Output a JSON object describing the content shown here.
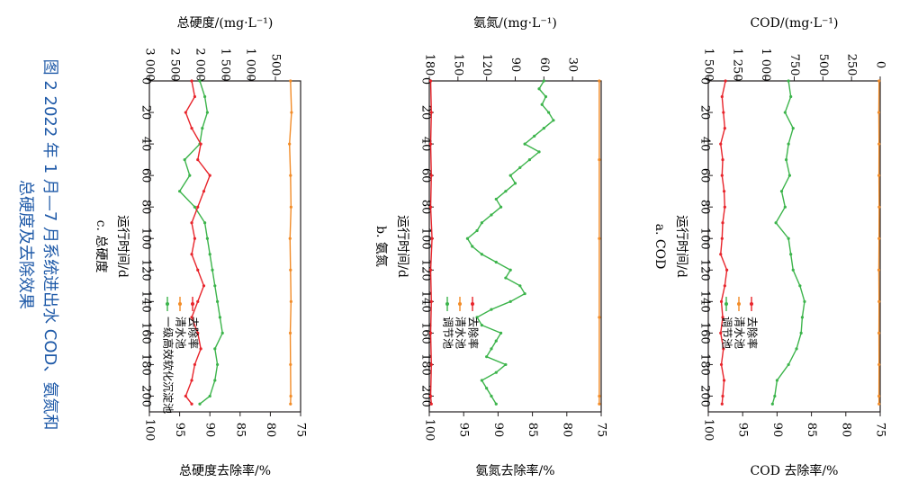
{
  "figure": {
    "caption_line1": "图 2   2022 年 1 月—7 月系统进出水 COD、氨氮和",
    "caption_line2": "总硬度及去除效果",
    "caption_color": "#1f5aa8"
  },
  "colors": {
    "green": "#3cb44b",
    "orange": "#f28c28",
    "red": "#e8242b",
    "axis": "#231f20"
  },
  "chart_data": [
    {
      "id": "cod",
      "type": "line",
      "panel_label": "a. COD",
      "xlabel": "运行时间/d",
      "ylabel_left": "COD/(mg·L⁻¹)",
      "ylabel_right": "COD 去除率/%",
      "xlim": [
        0,
        210
      ],
      "x_ticks": [
        0,
        20,
        40,
        60,
        80,
        100,
        120,
        140,
        160,
        180,
        200
      ],
      "x_tick_labels": [
        "0",
        "20",
        "40",
        "60",
        "80",
        "100",
        "120",
        "140",
        "160",
        "180",
        "200"
      ],
      "yleft_lim": [
        0,
        1500
      ],
      "yleft_ticks": [
        0,
        250,
        500,
        750,
        1000,
        1250,
        1500
      ],
      "yleft_tick_labels": [
        "0",
        "250",
        "500",
        "750",
        "1 000",
        "1 250",
        "1 500"
      ],
      "yright_lim": [
        75,
        100
      ],
      "yright_ticks": [
        75,
        80,
        85,
        90,
        95,
        100
      ],
      "yright_tick_labels": [
        "75",
        "80",
        "85",
        "90",
        "95",
        "100"
      ],
      "legend": [
        "调节池",
        "清水池",
        "去除率"
      ],
      "series": [
        {
          "name": "调节池",
          "color": "green",
          "axis": "left",
          "x": [
            0,
            10,
            20,
            30,
            40,
            50,
            60,
            70,
            80,
            90,
            100,
            110,
            120,
            130,
            140,
            150,
            160,
            170,
            180,
            190,
            200,
            205
          ],
          "values": [
            800,
            780,
            830,
            760,
            800,
            820,
            790,
            860,
            830,
            910,
            800,
            780,
            760,
            700,
            660,
            680,
            690,
            730,
            800,
            900,
            920,
            940
          ]
        },
        {
          "name": "清水池",
          "color": "orange",
          "axis": "left",
          "x": [
            0,
            20,
            40,
            60,
            80,
            100,
            120,
            140,
            160,
            180,
            200,
            205
          ],
          "values": [
            10,
            12,
            10,
            11,
            9,
            10,
            12,
            10,
            11,
            10,
            11,
            10
          ]
        },
        {
          "name": "去除率",
          "color": "red",
          "axis": "right",
          "x": [
            0,
            10,
            20,
            30,
            40,
            50,
            60,
            70,
            80,
            90,
            100,
            110,
            120,
            130,
            140,
            150,
            160,
            170,
            180,
            190,
            200,
            205
          ],
          "values": [
            97.5,
            98.0,
            97.8,
            97.6,
            98.2,
            97.9,
            98.0,
            97.7,
            97.6,
            97.9,
            98.0,
            98.2,
            97.3,
            97.6,
            98.1,
            97.9,
            98.2,
            97.8,
            98.1,
            97.7,
            97.9,
            98.0
          ]
        }
      ]
    },
    {
      "id": "nh3n",
      "type": "line",
      "panel_label": "b. 氨氮",
      "xlabel": "运行时间/d",
      "ylabel_left": "氨氮/(mg·L⁻¹)",
      "ylabel_right": "氨氮去除率/%",
      "xlim": [
        0,
        210
      ],
      "x_ticks": [
        0,
        20,
        40,
        60,
        80,
        100,
        120,
        140,
        160,
        180,
        200
      ],
      "x_tick_labels": [
        "0",
        "20",
        "40",
        "60",
        "80",
        "100",
        "120",
        "140",
        "160",
        "180",
        "200"
      ],
      "yleft_lim": [
        0,
        180
      ],
      "yleft_ticks": [
        30,
        60,
        90,
        120,
        150,
        180
      ],
      "yleft_tick_labels": [
        "30",
        "60",
        "90",
        "120",
        "150",
        "180"
      ],
      "yright_lim": [
        75,
        100
      ],
      "yright_ticks": [
        75,
        80,
        85,
        90,
        95,
        100
      ],
      "yright_tick_labels": [
        "75",
        "80",
        "85",
        "90",
        "95",
        "100"
      ],
      "legend": [
        "调节池",
        "清水池",
        "去除率"
      ],
      "series": [
        {
          "name": "调节池",
          "color": "green",
          "axis": "left",
          "x": [
            0,
            5,
            10,
            15,
            20,
            25,
            30,
            35,
            40,
            45,
            50,
            55,
            60,
            65,
            70,
            75,
            80,
            85,
            90,
            95,
            100,
            105,
            110,
            115,
            120,
            125,
            130,
            135,
            140,
            145,
            150,
            155,
            160,
            165,
            170,
            175,
            180,
            185,
            190,
            195,
            200,
            205
          ],
          "values": [
            60,
            65,
            58,
            62,
            55,
            50,
            60,
            70,
            80,
            65,
            75,
            85,
            95,
            90,
            100,
            110,
            105,
            115,
            125,
            130,
            140,
            135,
            125,
            110,
            95,
            100,
            85,
            80,
            95,
            115,
            130,
            125,
            105,
            110,
            115,
            120,
            100,
            110,
            125,
            120,
            115,
            110
          ]
        },
        {
          "name": "清水池",
          "color": "orange",
          "axis": "left",
          "x": [
            0,
            50,
            100,
            150,
            200,
            205
          ],
          "values": [
            2,
            2,
            2,
            2,
            2,
            2
          ]
        },
        {
          "name": "去除率",
          "color": "red",
          "axis": "right",
          "x": [
            0,
            20,
            40,
            60,
            80,
            100,
            120,
            140,
            160,
            180,
            200,
            205
          ],
          "values": [
            99.8,
            99.7,
            99.8,
            99.7,
            99.8,
            99.6,
            99.8,
            99.7,
            99.8,
            99.7,
            99.8,
            99.7
          ]
        }
      ]
    },
    {
      "id": "hardness",
      "type": "line",
      "panel_label": "c. 总硬度",
      "xlabel": "运行时间/d",
      "ylabel_left": "总硬度/(mg·L⁻¹)",
      "ylabel_right": "总硬度去除率/%",
      "xlim": [
        0,
        210
      ],
      "x_ticks": [
        0,
        20,
        40,
        60,
        80,
        100,
        120,
        140,
        160,
        180,
        200
      ],
      "x_tick_labels": [
        "0",
        "20",
        "40",
        "60",
        "80",
        "100",
        "120",
        "140",
        "160",
        "180",
        "200"
      ],
      "yleft_lim": [
        0,
        3000
      ],
      "yleft_ticks": [
        500,
        1000,
        1500,
        2000,
        2500,
        3000
      ],
      "yleft_tick_labels": [
        "500",
        "1 000",
        "1 500",
        "2 000",
        "2 500",
        "3 000"
      ],
      "yright_lim": [
        75,
        100
      ],
      "yright_ticks": [
        75,
        80,
        85,
        90,
        95,
        100
      ],
      "yright_tick_labels": [
        "75",
        "80",
        "85",
        "90",
        "95",
        "100"
      ],
      "legend": [
        "一级高效软化沉淀池",
        "清水池",
        "去除率"
      ],
      "series": [
        {
          "name": "一级高效软化沉淀池",
          "color": "green",
          "axis": "left",
          "x": [
            0,
            10,
            20,
            30,
            40,
            50,
            60,
            70,
            80,
            90,
            100,
            110,
            120,
            130,
            140,
            150,
            160,
            170,
            180,
            190,
            200,
            205
          ],
          "values": [
            2000,
            1900,
            1850,
            1950,
            2000,
            2300,
            2200,
            2400,
            2100,
            1900,
            1850,
            1800,
            1750,
            1700,
            1650,
            1600,
            1550,
            1700,
            1650,
            1700,
            1800,
            2000
          ]
        },
        {
          "name": "清水池",
          "color": "orange",
          "axis": "left",
          "x": [
            0,
            20,
            40,
            60,
            80,
            100,
            120,
            140,
            160,
            180,
            200,
            205
          ],
          "values": [
            200,
            180,
            220,
            200,
            190,
            210,
            200,
            190,
            205,
            200,
            195,
            200
          ]
        },
        {
          "name": "去除率",
          "color": "red",
          "axis": "right",
          "x": [
            0,
            10,
            20,
            30,
            40,
            50,
            60,
            70,
            80,
            90,
            100,
            110,
            120,
            130,
            140,
            150,
            160,
            170,
            180,
            190,
            200,
            205
          ],
          "values": [
            93,
            92.5,
            94,
            93,
            91.5,
            92,
            90,
            91,
            92,
            93,
            92.5,
            93,
            92,
            91,
            92,
            93,
            92,
            91.5,
            92.5,
            93,
            94,
            93
          ]
        }
      ]
    }
  ]
}
